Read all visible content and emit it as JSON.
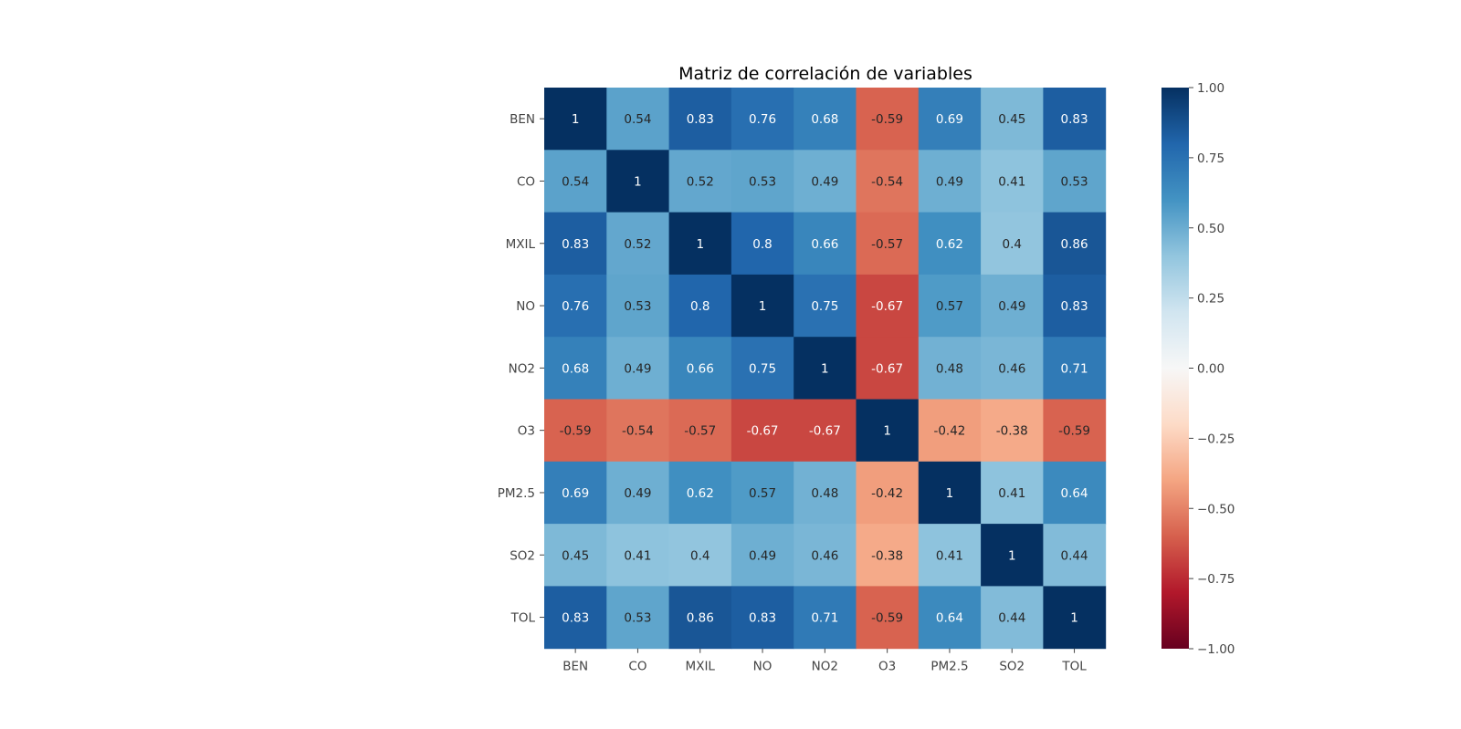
{
  "chart_data": {
    "type": "heatmap",
    "title": "Matriz de correlación de variables",
    "xlabel": "",
    "ylabel": "",
    "x_categories": [
      "BEN",
      "CO",
      "MXIL",
      "NO",
      "NO2",
      "O3",
      "PM2.5",
      "SO2",
      "TOL"
    ],
    "y_categories": [
      "BEN",
      "CO",
      "MXIL",
      "NO",
      "NO2",
      "O3",
      "PM2.5",
      "SO2",
      "TOL"
    ],
    "values": [
      [
        1,
        0.54,
        0.83,
        0.76,
        0.68,
        -0.59,
        0.69,
        0.45,
        0.83
      ],
      [
        0.54,
        1,
        0.52,
        0.53,
        0.49,
        -0.54,
        0.49,
        0.41,
        0.53
      ],
      [
        0.83,
        0.52,
        1,
        0.8,
        0.66,
        -0.57,
        0.62,
        0.4,
        0.86
      ],
      [
        0.76,
        0.53,
        0.8,
        1,
        0.75,
        -0.67,
        0.57,
        0.49,
        0.83
      ],
      [
        0.68,
        0.49,
        0.66,
        0.75,
        1,
        -0.67,
        0.48,
        0.46,
        0.71
      ],
      [
        -0.59,
        -0.54,
        -0.57,
        -0.67,
        -0.67,
        1,
        -0.42,
        -0.38,
        -0.59
      ],
      [
        0.69,
        0.49,
        0.62,
        0.57,
        0.48,
        -0.42,
        1,
        0.41,
        0.64
      ],
      [
        0.45,
        0.41,
        0.4,
        0.49,
        0.46,
        -0.38,
        0.41,
        1,
        0.44
      ],
      [
        0.83,
        0.53,
        0.86,
        0.83,
        0.71,
        -0.59,
        0.64,
        0.44,
        1
      ]
    ],
    "colormap": "RdBu",
    "color_range": [
      -1,
      1
    ],
    "colorbar_ticks": [
      "1.00",
      "0.75",
      "0.50",
      "0.25",
      "0.00",
      "−0.25",
      "−0.50",
      "−0.75",
      "−1.00"
    ],
    "colorbar_tick_values": [
      1,
      0.75,
      0.5,
      0.25,
      0,
      -0.25,
      -0.5,
      -0.75,
      -1
    ],
    "annotated": true,
    "grid": false,
    "colorbar_placement": "right"
  }
}
